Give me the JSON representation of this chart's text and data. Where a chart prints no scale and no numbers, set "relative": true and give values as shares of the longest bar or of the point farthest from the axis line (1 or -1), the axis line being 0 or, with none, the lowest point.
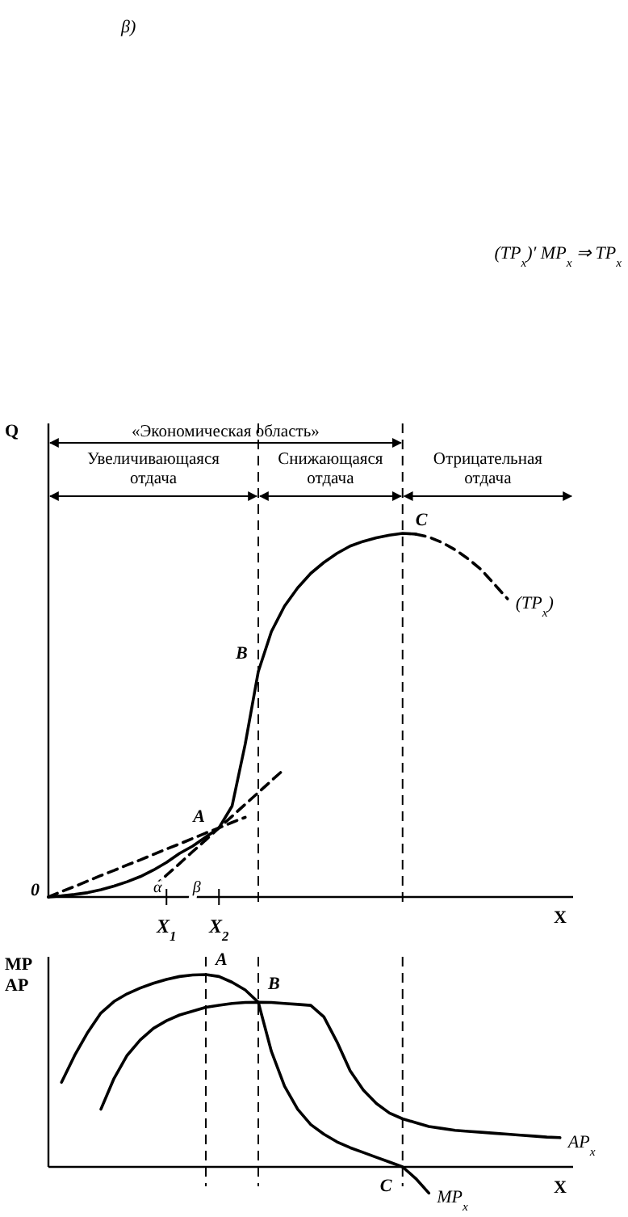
{
  "chart_data": [
    {
      "type": "line",
      "relative": true,
      "ylabel": "Q",
      "xlabel": "X",
      "line_style": "solid",
      "categories": [
        null,
        null,
        null,
        null,
        null,
        null,
        null,
        null,
        null,
        "X$_{1}$",
        null,
        null,
        null,
        "X$_{2}$",
        null,
        null,
        null,
        null,
        null,
        null,
        null,
        null,
        null,
        null,
        null,
        null,
        null,
        null,
        null,
        null,
        null,
        null,
        null,
        null,
        null,
        null,
        null,
        null,
        null,
        null,
        null
      ],
      "series": [
        {
          "color": "#000000",
          "values": [
            0,
            0.003,
            0.007,
            0.012,
            0.02,
            0.03,
            0.042,
            0.056,
            0.074,
            0.095,
            0.12,
            0.14,
            0.165,
            0.19,
            0.25,
            0.42,
            0.62,
            0.73,
            0.8,
            0.85,
            0.89,
            0.92,
            0.945,
            0.965,
            0.978,
            0.988,
            0.995,
            1.0,
            0.998,
            null,
            null,
            null,
            null,
            null,
            null,
            null,
            null,
            null,
            null,
            null,
            null
          ]
        },
        {
          "name": "(TP$_{x}$)",
          "color": "#000000",
          "line_style": "dashed",
          "values": [
            null,
            null,
            null,
            null,
            null,
            null,
            null,
            null,
            null,
            null,
            null,
            null,
            null,
            null,
            null,
            null,
            null,
            null,
            null,
            null,
            null,
            null,
            null,
            null,
            null,
            null,
            null,
            null,
            0.998,
            0.99,
            0.975,
            0.955,
            0.93,
            0.9,
            0.86,
            0.82,
            null,
            null,
            null,
            null,
            null
          ]
        },
        {
          "color": "#000000",
          "line_style": "dashed",
          "values": [
            0,
            0.015,
            0.029,
            0.044,
            0.059,
            0.073,
            0.088,
            0.102,
            0.117,
            0.132,
            0.146,
            0.161,
            0.176,
            0.19,
            0.205,
            0.219,
            null,
            null,
            null,
            null,
            null,
            null,
            null,
            null,
            null,
            null,
            null,
            null,
            null,
            null,
            null,
            null,
            null,
            null,
            null,
            null,
            null,
            null,
            null,
            null,
            null
          ]
        },
        {
          "color": "#000000",
          "line_style": "dashed",
          "values": [
            null,
            null,
            null,
            null,
            null,
            null,
            null,
            null,
            0.027,
            0.06,
            0.092,
            0.125,
            0.157,
            0.19,
            0.222,
            0.255,
            0.287,
            0.32,
            0.352,
            null,
            null,
            null,
            null,
            null,
            null,
            null,
            null,
            null,
            null,
            null,
            null,
            null,
            null,
            null,
            null,
            null,
            null,
            null,
            null,
            null,
            null
          ]
        }
      ],
      "annotations": [
        "β)",
        "(TP$_{x}$)′   MP$_{x}$   ⇒ TP$_{x}$",
        "«Экономическая область»",
        "Увеличивающаяся\nотдача",
        "Снижающаяся\nотдача",
        "Отрицательная\nотдача",
        "0",
        "B",
        "C",
        "α",
        "β",
        {
          "text": "A",
          "x": "X$_{2}$",
          "y": 0.19
        }
      ]
    },
    {
      "type": "line",
      "relative": true,
      "ylabel": "MP\nAP",
      "xlabel": "X",
      "line_style": "solid",
      "grid": "x",
      "categories": [
        null,
        null,
        null,
        null,
        null,
        null,
        null,
        null,
        null,
        null,
        null,
        null,
        null,
        null,
        null,
        null,
        null,
        null,
        null,
        null,
        null,
        null,
        null,
        null,
        null,
        null,
        null,
        null,
        null,
        null,
        null,
        null,
        null,
        null,
        null,
        null,
        null,
        null,
        null,
        null,
        null
      ],
      "series": [
        {
          "name": "MP$_{x}$",
          "color": "#000000",
          "values": [
            null,
            0.44,
            0.58,
            0.7,
            0.8,
            0.86,
            0.9,
            0.93,
            0.955,
            0.975,
            0.99,
            0.998,
            1.0,
            0.99,
            0.96,
            0.92,
            0.856,
            0.6,
            0.42,
            0.3,
            0.22,
            0.17,
            0.13,
            0.1,
            0.075,
            0.05,
            0.025,
            0,
            -0.06,
            -0.136,
            null,
            null,
            null,
            null,
            null,
            null,
            null,
            null,
            null,
            null,
            null
          ]
        },
        {
          "name": "AP$_{x}$",
          "color": "#000000",
          "values": [
            null,
            null,
            null,
            null,
            0.3,
            0.46,
            0.58,
            0.66,
            0.72,
            0.76,
            0.79,
            0.81,
            0.83,
            0.84,
            0.85,
            0.855,
            0.856,
            0.855,
            0.85,
            0.845,
            0.84,
            0.78,
            0.65,
            0.5,
            0.4,
            0.33,
            0.28,
            0.25,
            0.23,
            0.21,
            0.2,
            0.19,
            0.185,
            0.18,
            0.175,
            0.17,
            0.165,
            0.16,
            0.155,
            0.152,
            null
          ]
        }
      ],
      "annotations": [
        "A",
        "B",
        "C"
      ]
    }
  ]
}
